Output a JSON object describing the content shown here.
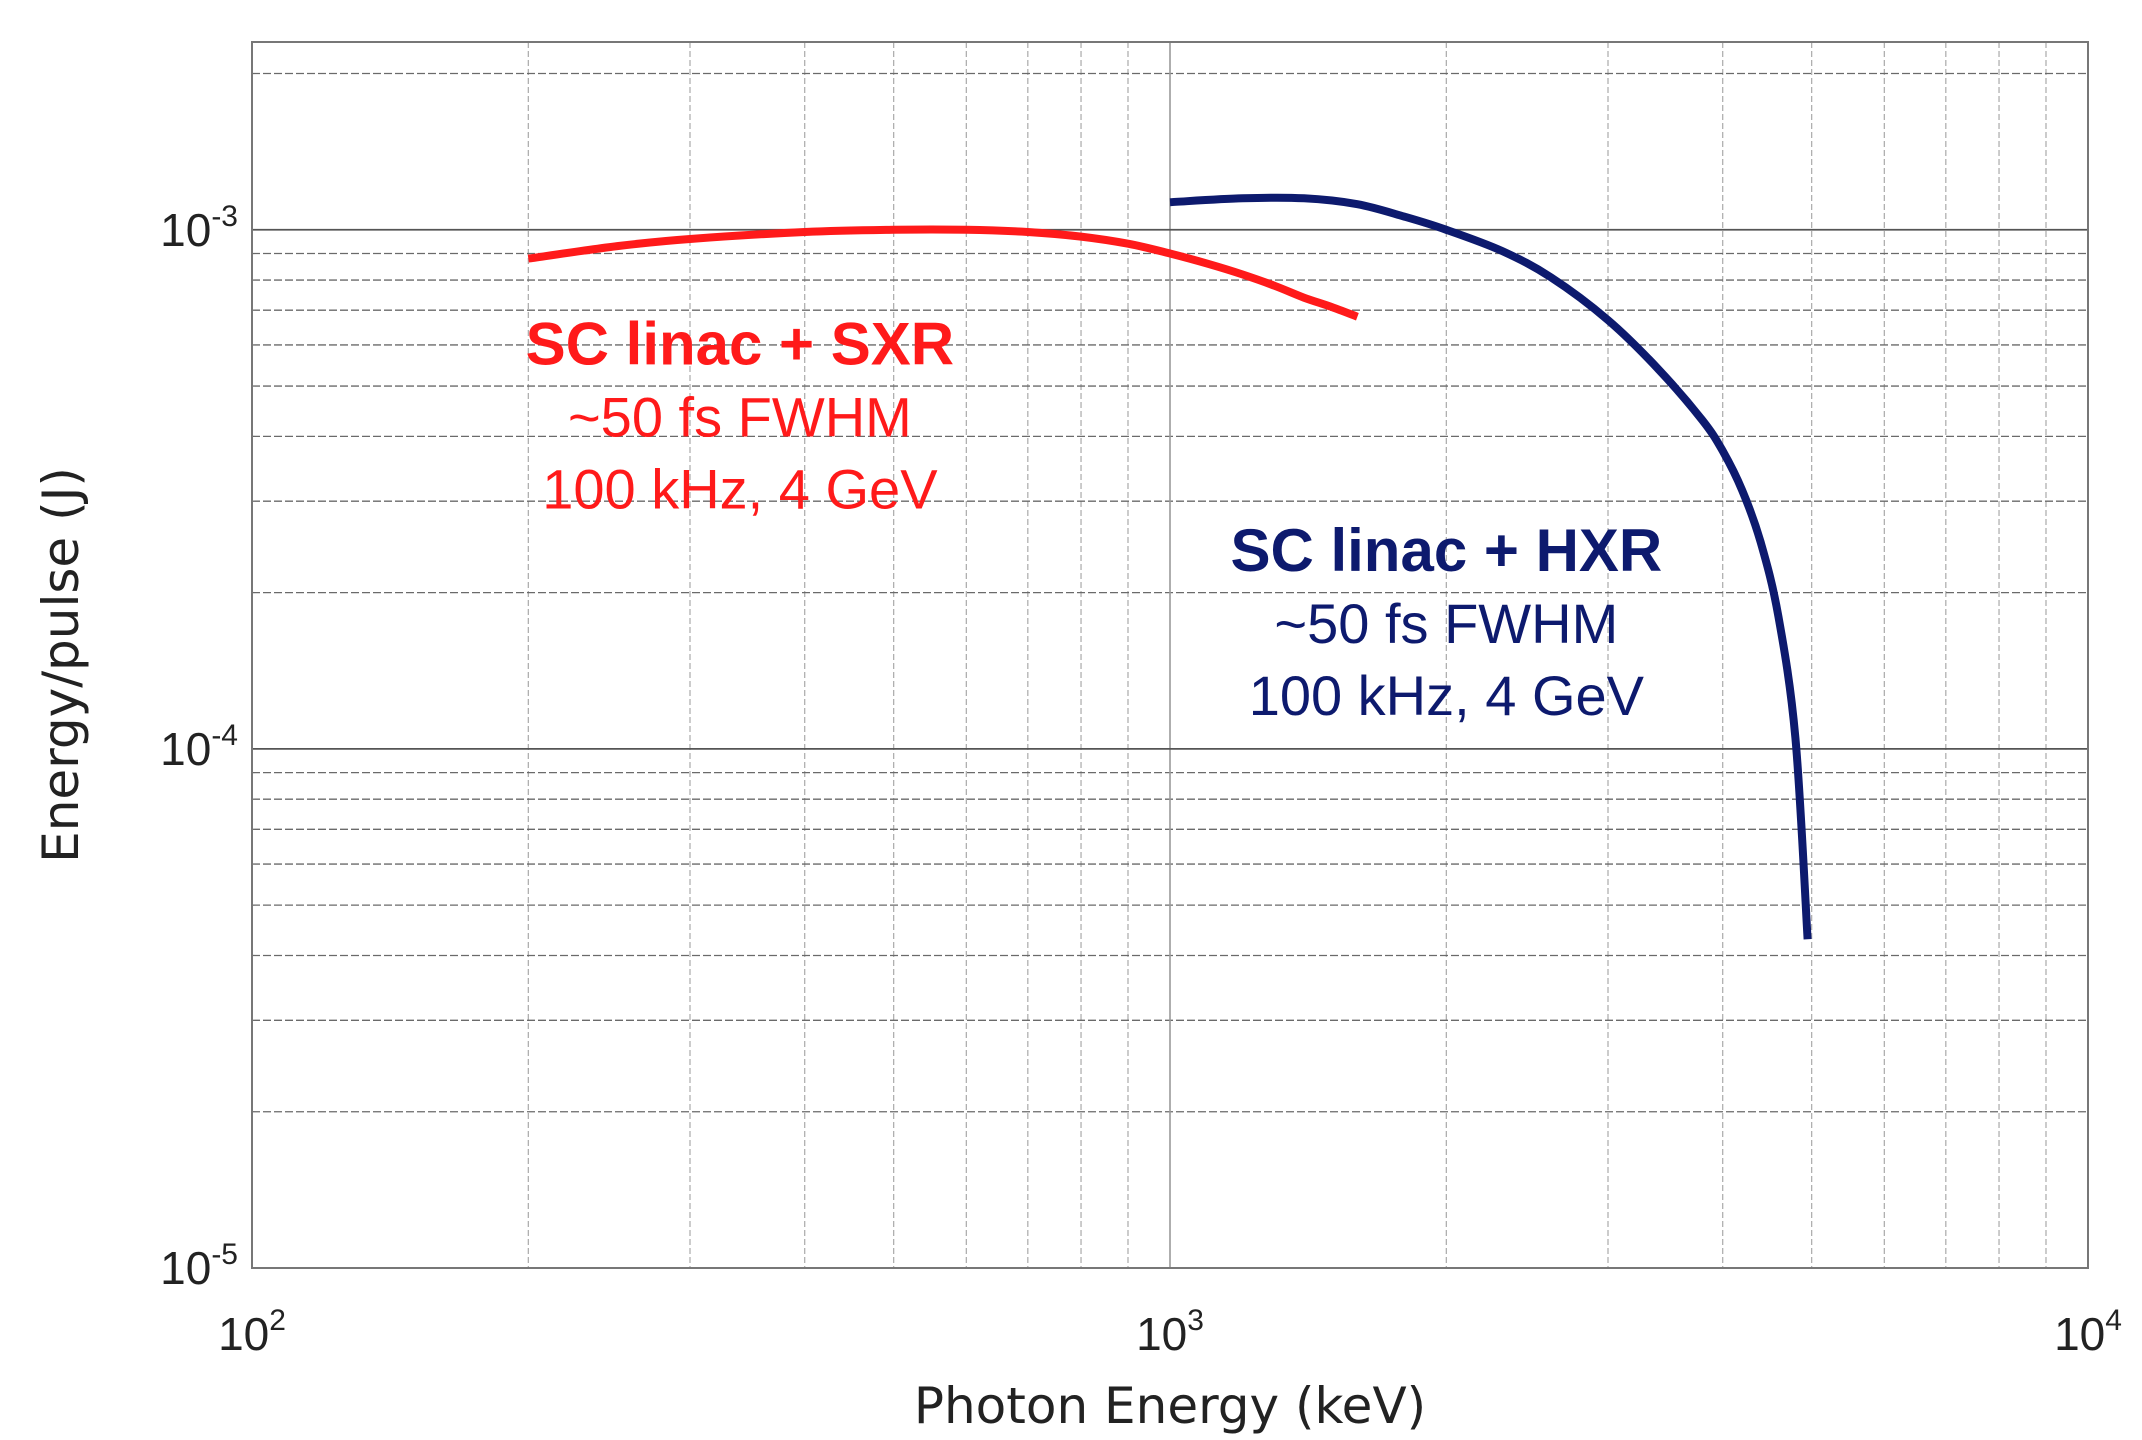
{
  "chart_data": {
    "type": "line",
    "xlabel": "Photon Energy (keV)",
    "ylabel": "Energy/pulse (J)",
    "x_scale": "log",
    "y_scale": "log",
    "xlim": [
      100,
      10000
    ],
    "ylim": [
      1e-05,
      0.0023
    ],
    "x_ticks": [
      {
        "value": 100,
        "base": "10",
        "exp": "2"
      },
      {
        "value": 1000,
        "base": "10",
        "exp": "3"
      },
      {
        "value": 10000,
        "base": "10",
        "exp": "4"
      }
    ],
    "y_ticks": [
      {
        "value": 1e-05,
        "base": "10",
        "exp": "-5"
      },
      {
        "value": 0.0001,
        "base": "10",
        "exp": "-4"
      },
      {
        "value": 0.001,
        "base": "10",
        "exp": "-3"
      }
    ],
    "grid": true,
    "series": [
      {
        "name": "SC linac + SXR",
        "color": "#ff1a1a",
        "x": [
          200,
          250,
          300,
          400,
          500,
          600,
          700,
          800,
          900,
          1000,
          1100,
          1200,
          1300,
          1400,
          1500,
          1600
        ],
        "y": [
          0.00088,
          0.00093,
          0.00096,
          0.00099,
          0.001,
          0.001,
          0.00099,
          0.00097,
          0.00094,
          0.0009,
          0.00086,
          0.00082,
          0.00078,
          0.00074,
          0.00071,
          0.00068
        ]
      },
      {
        "name": "SC linac + HXR",
        "color": "#0d1a6e",
        "x": [
          1000,
          1200,
          1400,
          1600,
          1800,
          2000,
          2300,
          2600,
          3000,
          3400,
          3800,
          4000,
          4200,
          4400,
          4600,
          4800,
          4950
        ],
        "y": [
          0.00113,
          0.00115,
          0.00115,
          0.00112,
          0.00106,
          0.001,
          0.00091,
          0.00081,
          0.00067,
          0.00054,
          0.00043,
          0.000375,
          0.000315,
          0.00025,
          0.00018,
          0.000105,
          4.3e-05
        ]
      }
    ],
    "annotations": [
      {
        "color": "#ff1a1a",
        "anchor_x": 340,
        "anchor_y": 0.00055,
        "title": "SC linac + SXR",
        "lines": [
          "~50 fs FWHM",
          "100 kHz, 4 GeV"
        ]
      },
      {
        "color": "#0d1a6e",
        "anchor_x": 2000,
        "anchor_y": 0.00022,
        "title": "SC linac + HXR",
        "lines": [
          "~50 fs FWHM",
          "100 kHz, 4 GeV"
        ]
      }
    ]
  }
}
